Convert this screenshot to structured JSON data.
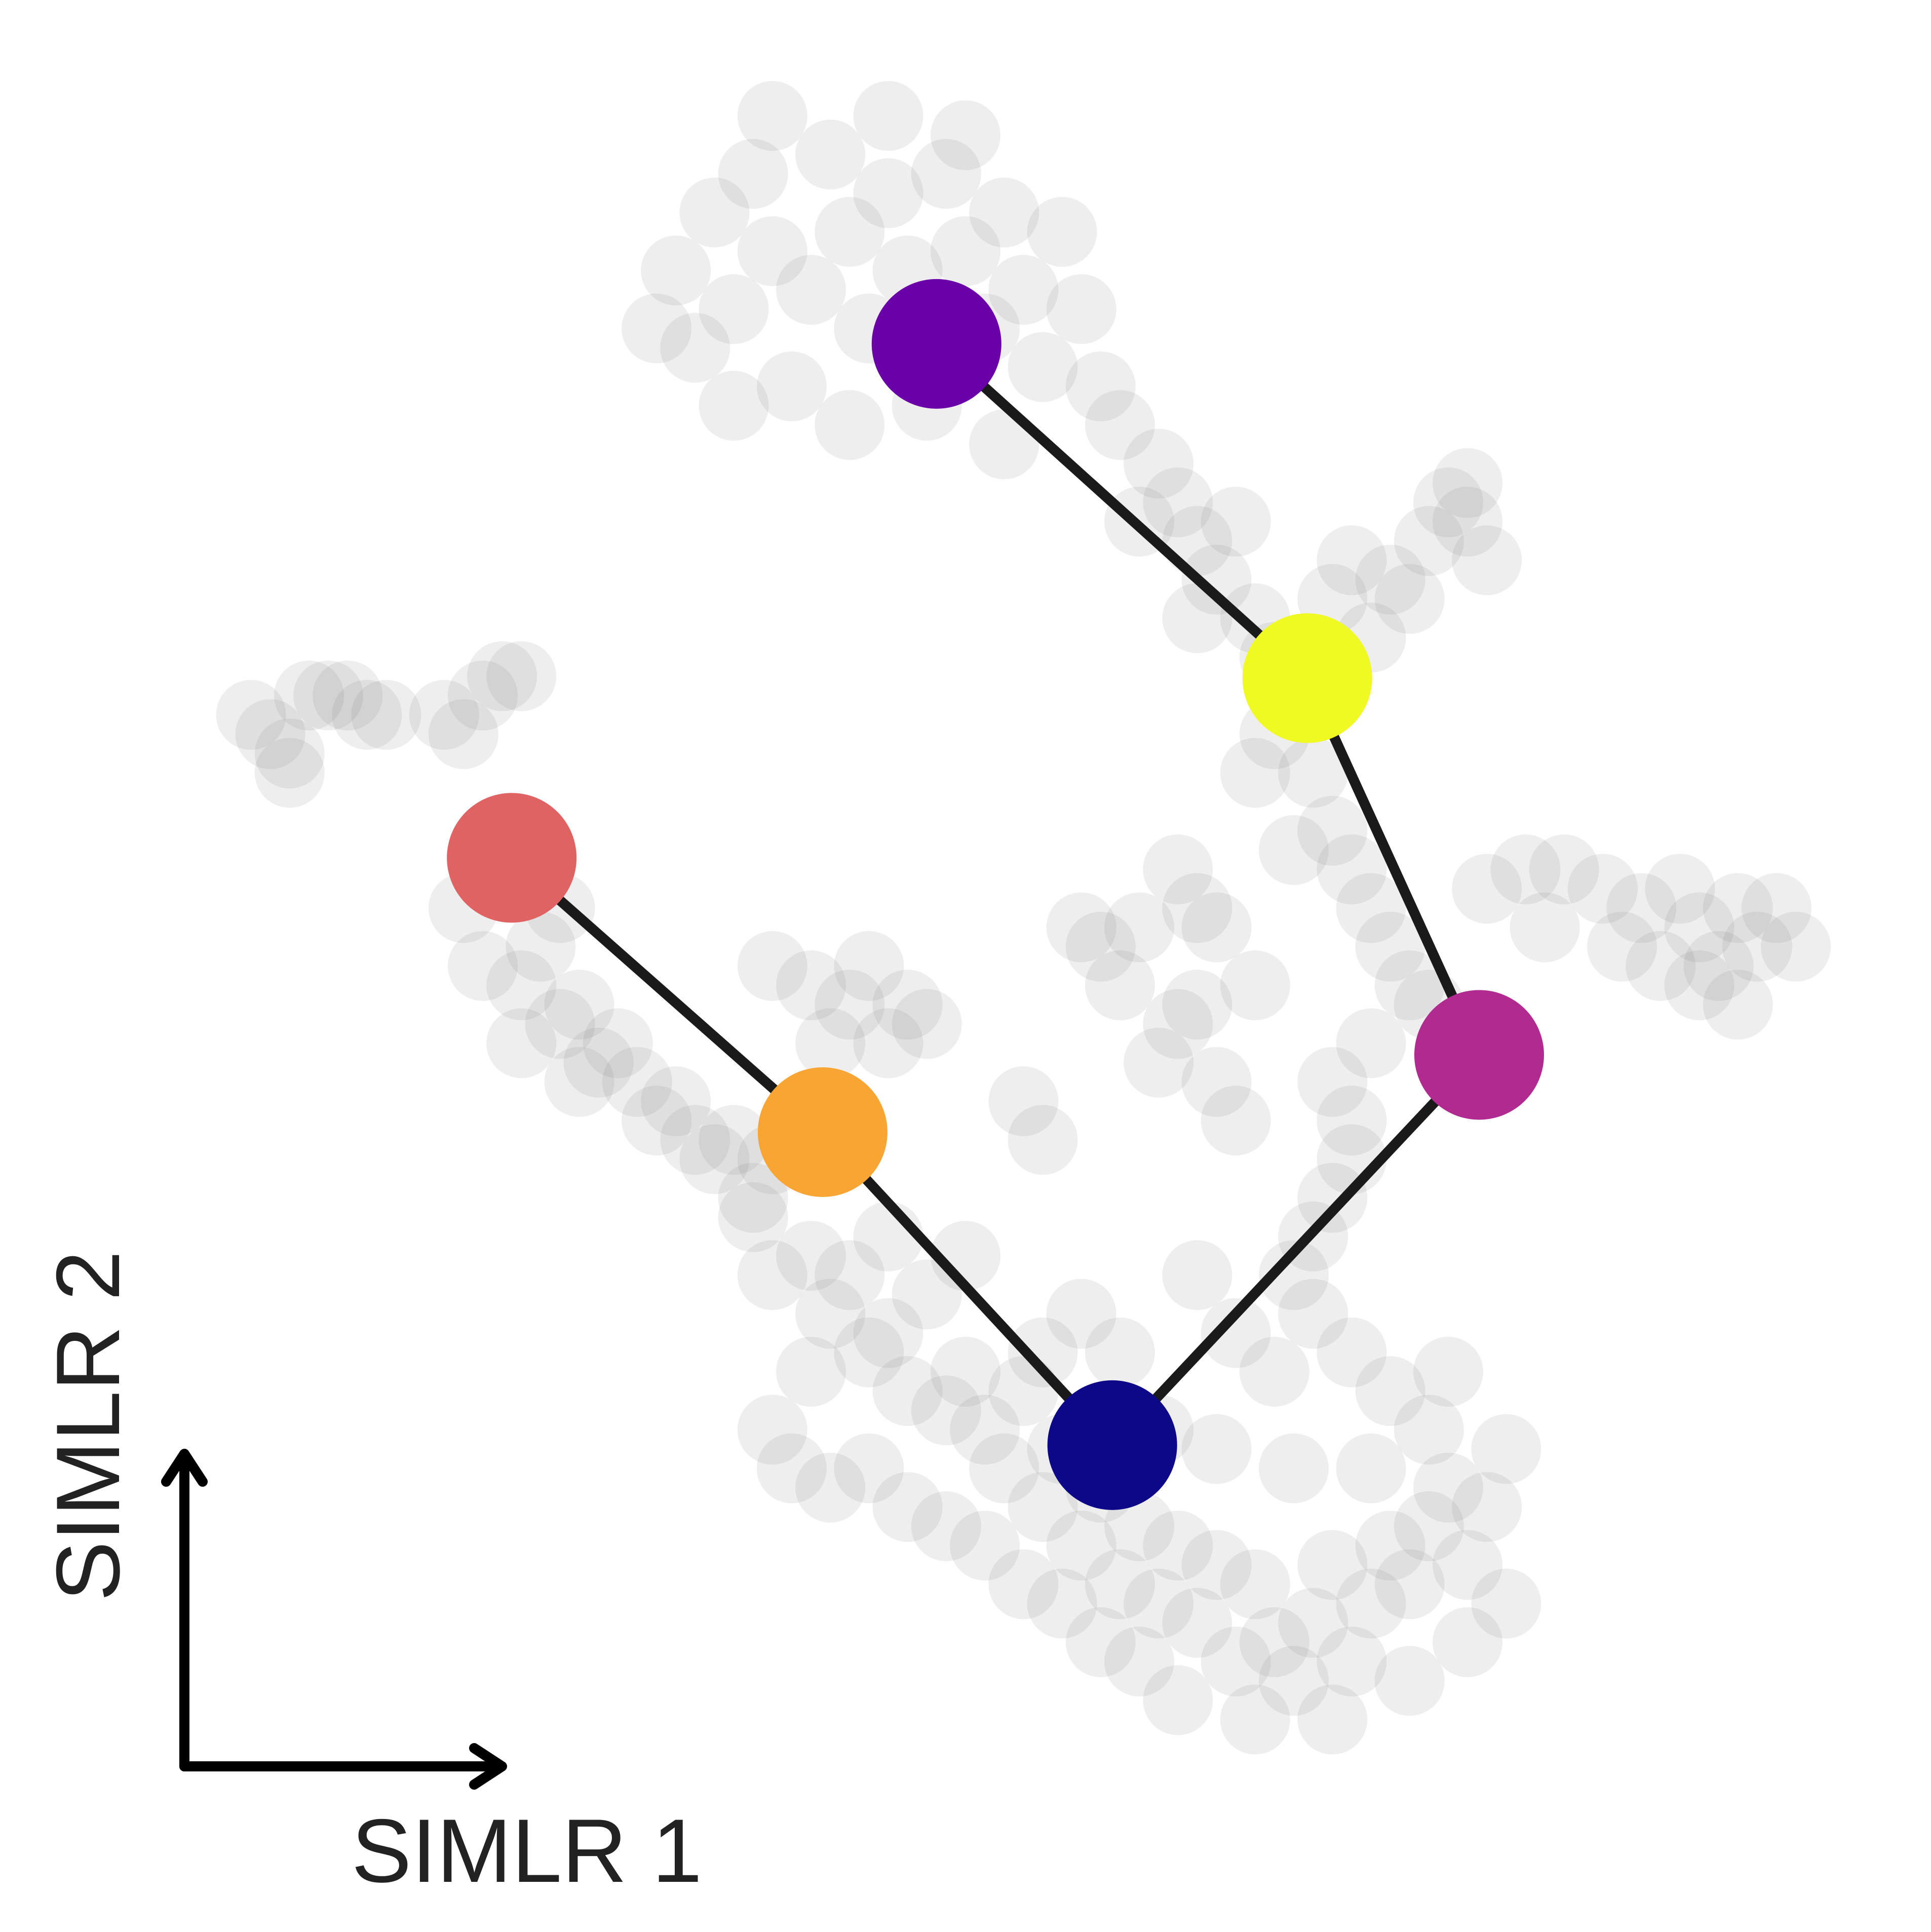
{
  "chart_data": {
    "type": "scatter",
    "x_label": "SIMLR 1",
    "y_label": "SIMLR 2",
    "xlim": [
      0,
      100
    ],
    "ylim": [
      0,
      100
    ],
    "cells": {
      "color": "#7f7f7f",
      "x": [
        35,
        36,
        37,
        38,
        39,
        40,
        41,
        42,
        43,
        44,
        45,
        46,
        47,
        48,
        49,
        50,
        51,
        52,
        53,
        54,
        55,
        56,
        34,
        38,
        44,
        52,
        57,
        50,
        46,
        40,
        58,
        60,
        61,
        62,
        63,
        64,
        65,
        66,
        59,
        62,
        74,
        75,
        76,
        77,
        73,
        72,
        76,
        70,
        69,
        71,
        66,
        68,
        69,
        70,
        71,
        72,
        73,
        74,
        67,
        65,
        77,
        79,
        81,
        83,
        85,
        87,
        88,
        89,
        90,
        91,
        92,
        93,
        90,
        88,
        86,
        84,
        80,
        13,
        14,
        15,
        16,
        17,
        18,
        19,
        20,
        23,
        25,
        26,
        27,
        24,
        15,
        24,
        25,
        27,
        28,
        29,
        30,
        31,
        32,
        33,
        34,
        35,
        36,
        37,
        38,
        39,
        40,
        29,
        27,
        30,
        40,
        42,
        44,
        45,
        47,
        48,
        46,
        43,
        53,
        54,
        56,
        57,
        59,
        61,
        62,
        63,
        58,
        61,
        60,
        63,
        64,
        62,
        65,
        69,
        70,
        70,
        69,
        68,
        71,
        67,
        39,
        40,
        42,
        43,
        44,
        45,
        46,
        47,
        48,
        49,
        50,
        51,
        52,
        53,
        54,
        55,
        56,
        57,
        58,
        59,
        60,
        61,
        62,
        63,
        64,
        65,
        66,
        67,
        68,
        69,
        70,
        71,
        72,
        73,
        74,
        75,
        76,
        77,
        78,
        74,
        72,
        70,
        68,
        66,
        64,
        62,
        60,
        58,
        56,
        54,
        50,
        46,
        42,
        40,
        41,
        43,
        45,
        47,
        49,
        51,
        53,
        55,
        57,
        59,
        61,
        65,
        69,
        73,
        76,
        78,
        67,
        63,
        75,
        71
      ],
      "y": [
        86,
        82,
        89,
        84,
        91,
        87,
        80,
        85,
        92,
        88,
        83,
        90,
        86,
        79,
        91,
        87,
        83,
        89,
        85,
        81,
        88,
        84,
        83,
        79,
        78,
        77,
        80,
        93,
        94,
        94,
        78,
        76,
        74,
        72,
        70,
        73,
        68,
        66,
        73,
        68,
        72,
        74,
        73,
        71,
        69,
        70,
        75,
        71,
        69,
        67,
        62,
        60,
        57,
        55,
        53,
        51,
        49,
        48,
        56,
        60,
        54,
        55,
        55,
        54,
        53,
        54,
        52,
        50,
        53,
        51,
        53,
        51,
        48,
        49,
        50,
        51,
        52,
        63,
        62,
        61,
        64,
        64,
        64,
        63,
        63,
        63,
        64,
        65,
        65,
        62,
        60,
        53,
        50,
        49,
        51,
        47,
        48,
        45,
        46,
        44,
        42,
        43,
        41,
        40,
        41,
        38,
        40,
        53,
        46,
        44,
        50,
        49,
        48,
        50,
        48,
        47,
        46,
        46,
        43,
        41,
        52,
        51,
        52,
        55,
        53,
        52,
        49,
        47,
        45,
        44,
        42,
        48,
        49,
        44,
        42,
        40,
        38,
        36,
        46,
        34,
        37,
        34,
        35,
        32,
        34,
        30,
        31,
        28,
        33,
        27,
        29,
        26,
        24,
        28,
        22,
        25,
        20,
        23,
        18,
        21,
        17,
        20,
        16,
        19,
        14,
        18,
        15,
        13,
        16,
        19,
        14,
        17,
        20,
        18,
        21,
        23,
        19,
        22,
        25,
        26,
        28,
        30,
        32,
        29,
        31,
        34,
        26,
        30,
        32,
        30,
        35,
        36,
        29,
        26,
        24,
        23,
        24,
        22,
        21,
        20,
        18,
        17,
        15,
        14,
        12,
        11,
        11,
        13,
        15,
        17,
        24,
        25,
        29,
        24
      ]
    },
    "trajectory": {
      "line_color": "#1a1a1a",
      "x": [
        26.5,
        42.6,
        57.6,
        76.6,
        67.7,
        48.5
      ],
      "y": [
        55.6,
        41.4,
        25.2,
        45.4,
        64.9,
        82.2
      ],
      "colors": [
        "#e06363",
        "#f8a534",
        "#0d0887",
        "#b12a90",
        "#f0f921",
        "#6a00a8"
      ]
    }
  }
}
